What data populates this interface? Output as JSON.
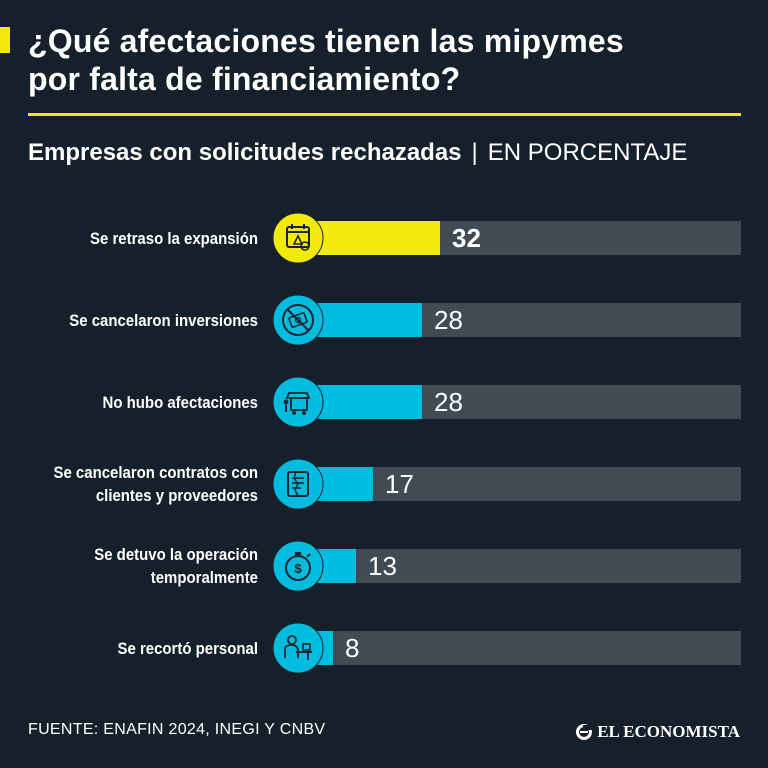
{
  "title": {
    "line1": "¿Qué afectaciones tienen las mipymes",
    "line2": "por falta de financiamiento?"
  },
  "subtitle": {
    "main": "Empresas con solicitudes rechazadas",
    "separator": "|",
    "unit": "EN PORCENTAJE"
  },
  "colors": {
    "highlight": "#f2ea0b",
    "bar": "#00bde0",
    "track": "#404b54",
    "background": "#15202b",
    "icon_circle_default": "#00bde0",
    "icon_circle_highlight": "#f2ea0b"
  },
  "chart_data": {
    "type": "bar",
    "orientation": "horizontal",
    "categories": [
      [
        "Se retraso la expansión"
      ],
      [
        "Se cancelaron inversiones"
      ],
      [
        "No hubo afectaciones"
      ],
      [
        "Se cancelaron contratos con",
        "clientes y proveedores"
      ],
      [
        "Se detuvo la operación",
        "temporalmente"
      ],
      [
        "Se recortó personal"
      ]
    ],
    "values": [
      32,
      28,
      28,
      17,
      13,
      8
    ],
    "value_labels": [
      "32",
      "28",
      "28",
      "17",
      "13",
      "8"
    ],
    "highlight_index": 0,
    "icons": [
      "calendar-warning-icon",
      "no-money-icon",
      "market-stall-icon",
      "contract-icon",
      "stopwatch-money-icon",
      "worker-desk-icon"
    ],
    "xlim": [
      0,
      100
    ],
    "title": "¿Qué afectaciones tienen las mipymes por falta de financiamiento?",
    "xlabel": "",
    "ylabel": ""
  },
  "footer": {
    "source": "FUENTE: ENAFIN 2024, INEGI Y CNBV",
    "brand": "EL ECONOMISTA"
  }
}
